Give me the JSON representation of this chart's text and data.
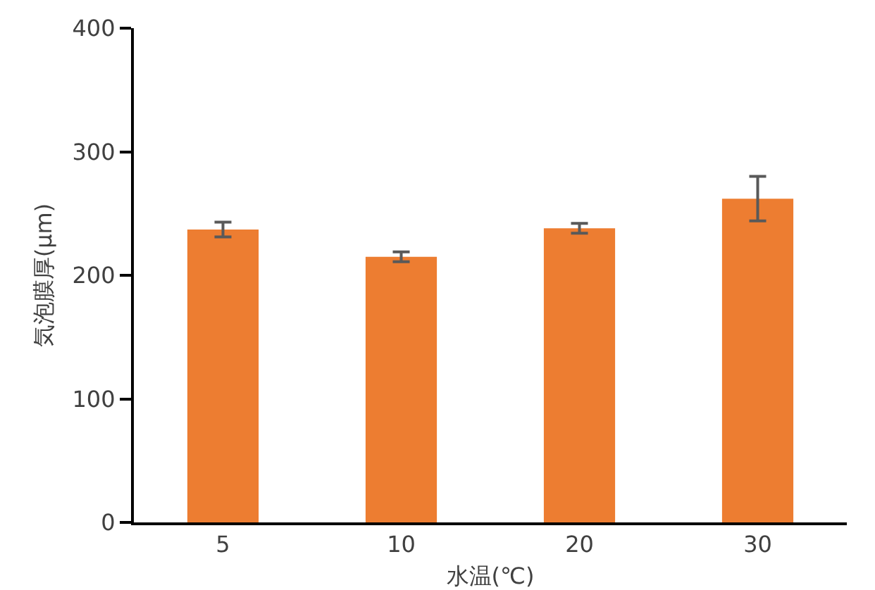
{
  "chart_data": {
    "type": "bar",
    "xlabel": "水温(℃)",
    "ylabel": "気泡膜厚(μm)",
    "categories": [
      "5",
      "10",
      "20",
      "30"
    ],
    "values": [
      237,
      215,
      238,
      262
    ],
    "errors": [
      6,
      4,
      4,
      18
    ],
    "color": "#ed7d31",
    "ylim": [
      0,
      400
    ],
    "yticks": [
      0,
      100,
      200,
      300,
      400
    ],
    "grid": false,
    "legend": false
  }
}
